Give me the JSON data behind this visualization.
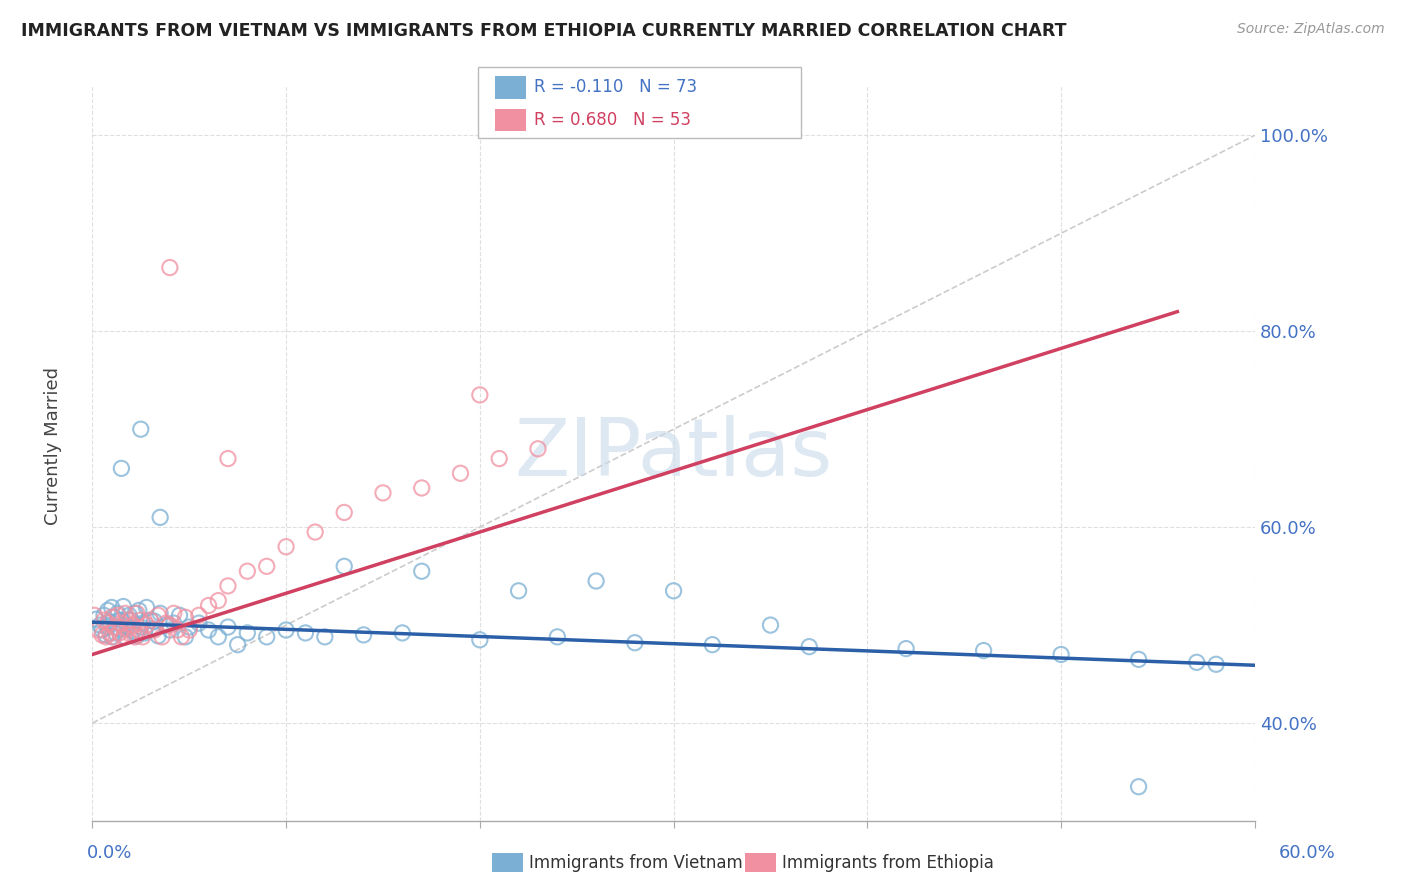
{
  "title": "IMMIGRANTS FROM VIETNAM VS IMMIGRANTS FROM ETHIOPIA CURRENTLY MARRIED CORRELATION CHART",
  "source": "Source: ZipAtlas.com",
  "ylabel": "Currently Married",
  "xlim": [
    0.0,
    0.6
  ],
  "ylim": [
    0.3,
    1.05
  ],
  "yticks": [
    0.4,
    0.6,
    0.8,
    1.0
  ],
  "ytick_labels": [
    "40.0%",
    "60.0%",
    "80.0%",
    "100.0%"
  ],
  "series1_name": "Immigrants from Vietnam",
  "series2_name": "Immigrants from Ethiopia",
  "series1_color": "#7bafd4",
  "series2_color": "#f090a0",
  "series1_line_color": "#2b5fa8",
  "series2_line_color": "#d04060",
  "series1_R": -0.11,
  "series1_N": 73,
  "series2_R": 0.68,
  "series2_N": 53,
  "watermark": "ZIPatlas",
  "background_color": "#ffffff",
  "diag_line_x": [
    0.0,
    0.6
  ],
  "diag_line_y": [
    0.4,
    1.0
  ],
  "trend1_x": [
    0.0,
    0.6
  ],
  "trend1_y": [
    0.503,
    0.459
  ],
  "trend2_x": [
    0.0,
    0.56
  ],
  "trend2_y": [
    0.47,
    0.82
  ],
  "s1x": [
    0.002,
    0.004,
    0.005,
    0.006,
    0.007,
    0.008,
    0.008,
    0.009,
    0.01,
    0.01,
    0.011,
    0.012,
    0.013,
    0.014,
    0.015,
    0.016,
    0.016,
    0.017,
    0.018,
    0.019,
    0.02,
    0.021,
    0.022,
    0.023,
    0.024,
    0.025,
    0.026,
    0.027,
    0.028,
    0.03,
    0.031,
    0.032,
    0.034,
    0.035,
    0.038,
    0.04,
    0.042,
    0.045,
    0.048,
    0.05,
    0.055,
    0.06,
    0.065,
    0.07,
    0.075,
    0.08,
    0.09,
    0.1,
    0.11,
    0.12,
    0.14,
    0.16,
    0.2,
    0.24,
    0.28,
    0.32,
    0.37,
    0.42,
    0.46,
    0.5,
    0.54,
    0.57,
    0.58,
    0.015,
    0.025,
    0.035,
    0.13,
    0.17,
    0.22,
    0.26,
    0.3,
    0.54,
    0.35
  ],
  "s1y": [
    0.506,
    0.5,
    0.495,
    0.51,
    0.49,
    0.515,
    0.498,
    0.503,
    0.488,
    0.518,
    0.508,
    0.492,
    0.512,
    0.496,
    0.505,
    0.5,
    0.519,
    0.488,
    0.498,
    0.51,
    0.505,
    0.494,
    0.512,
    0.489,
    0.515,
    0.498,
    0.502,
    0.492,
    0.518,
    0.505,
    0.496,
    0.504,
    0.489,
    0.512,
    0.5,
    0.495,
    0.502,
    0.51,
    0.488,
    0.498,
    0.502,
    0.495,
    0.488,
    0.498,
    0.48,
    0.492,
    0.488,
    0.495,
    0.492,
    0.488,
    0.49,
    0.492,
    0.485,
    0.488,
    0.482,
    0.48,
    0.478,
    0.476,
    0.474,
    0.47,
    0.465,
    0.462,
    0.46,
    0.66,
    0.7,
    0.61,
    0.56,
    0.555,
    0.535,
    0.545,
    0.535,
    0.335,
    0.5
  ],
  "s2x": [
    0.001,
    0.003,
    0.005,
    0.006,
    0.007,
    0.008,
    0.009,
    0.01,
    0.011,
    0.012,
    0.013,
    0.014,
    0.015,
    0.016,
    0.017,
    0.018,
    0.019,
    0.02,
    0.021,
    0.022,
    0.023,
    0.024,
    0.025,
    0.026,
    0.028,
    0.03,
    0.032,
    0.034,
    0.036,
    0.038,
    0.04,
    0.042,
    0.044,
    0.046,
    0.048,
    0.05,
    0.055,
    0.06,
    0.065,
    0.07,
    0.08,
    0.09,
    0.1,
    0.115,
    0.13,
    0.15,
    0.17,
    0.19,
    0.21,
    0.23,
    0.04,
    0.07,
    0.2
  ],
  "s2y": [
    0.51,
    0.495,
    0.49,
    0.505,
    0.488,
    0.502,
    0.492,
    0.508,
    0.488,
    0.498,
    0.51,
    0.492,
    0.502,
    0.488,
    0.512,
    0.496,
    0.505,
    0.49,
    0.5,
    0.488,
    0.512,
    0.495,
    0.505,
    0.488,
    0.5,
    0.505,
    0.495,
    0.51,
    0.488,
    0.502,
    0.5,
    0.512,
    0.495,
    0.488,
    0.508,
    0.495,
    0.51,
    0.52,
    0.525,
    0.54,
    0.555,
    0.56,
    0.58,
    0.595,
    0.615,
    0.635,
    0.64,
    0.655,
    0.67,
    0.68,
    0.865,
    0.67,
    0.735
  ]
}
